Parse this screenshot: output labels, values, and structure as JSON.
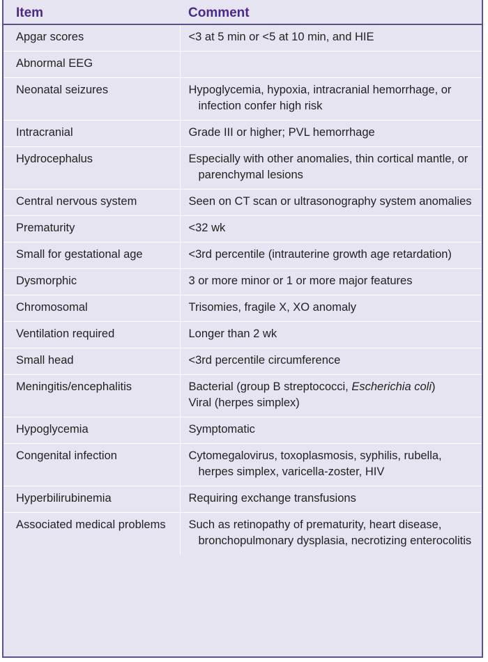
{
  "table": {
    "headers": [
      "Item",
      "Comment"
    ],
    "rows": [
      {
        "item": "Apgar scores",
        "comment": "<3 at 5 min or <5 at 10 min, and HIE"
      },
      {
        "item": "Abnormal EEG",
        "comment": ""
      },
      {
        "item": "Neonatal seizures",
        "comment": "Hypoglycemia, hypoxia, intracranial hemorrhage, or infection confer high risk"
      },
      {
        "item": "Intracranial",
        "comment": "Grade III or higher; PVL hemorrhage"
      },
      {
        "item": "Hydrocephalus",
        "comment": "Especially with other anomalies, thin cortical mantle, or parenchymal lesions"
      },
      {
        "item": "Central nervous system",
        "comment": "Seen on CT scan or ultrasonography system anomalies"
      },
      {
        "item": "Prematurity",
        "comment": "<32 wk"
      },
      {
        "item": "Small for gestational age",
        "comment": "<3rd percentile (intrauterine growth age retardation)"
      },
      {
        "item": "Dysmorphic",
        "comment": "3 or more minor or 1 or more major features"
      },
      {
        "item": "Chromosomal",
        "comment": "Trisomies, fragile X, XO anomaly"
      },
      {
        "item": "Ventilation required",
        "comment": "Longer than 2 wk"
      },
      {
        "item": "Small head",
        "comment": "<3rd percentile circumference"
      },
      {
        "item": "Meningitis/encephalitis",
        "comment_parts": [
          "Bacterial (group B streptococci, ",
          "Escherichia coli",
          ")"
        ],
        "comment_line2": "Viral (herpes simplex)"
      },
      {
        "item": "Hypoglycemia",
        "comment": "Symptomatic"
      },
      {
        "item": "Congenital infection",
        "comment": "Cytomegalovirus, toxoplasmosis, syphilis, rubella, herpes simplex, varicella-zoster, HIV"
      },
      {
        "item": "Hyperbilirubinemia",
        "comment": "Requiring exchange transfusions"
      },
      {
        "item": "Associated medical problems",
        "comment": "Such as retinopathy of prematurity, heart disease, bronchopulmonary dysplasia, necrotizing enterocolitis"
      }
    ]
  }
}
